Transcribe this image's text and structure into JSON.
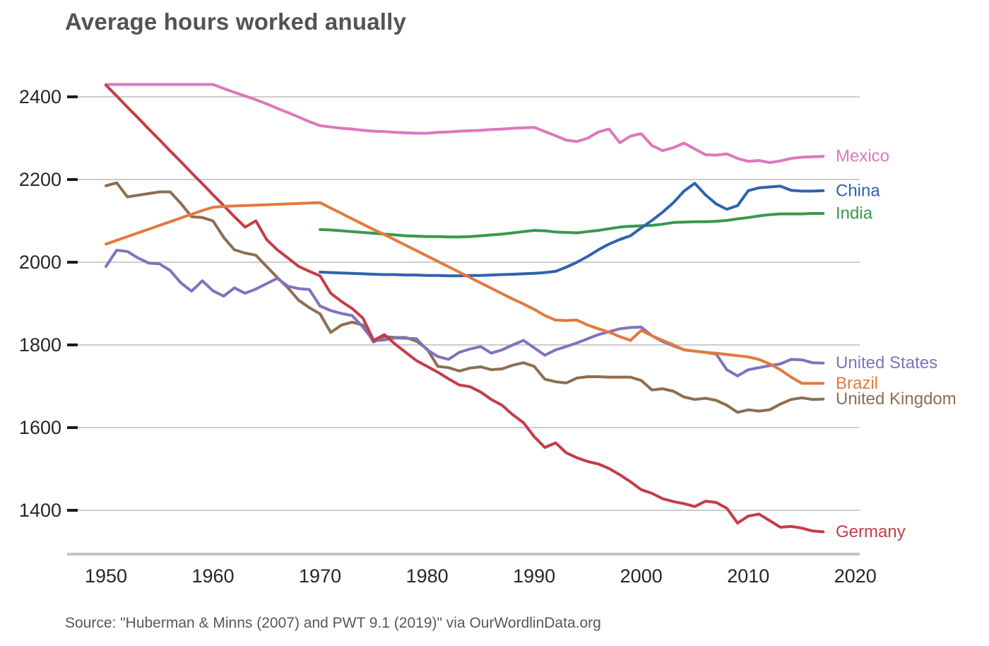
{
  "header": {
    "title": "Average hours worked anually"
  },
  "footer": {
    "source": "Source: \"Huberman & Minns (2007) and PWT 9.1 (2019)\" via OurWordlinData.org"
  },
  "colors": {
    "background": "#ffffff",
    "gridline": "#cdcdcd",
    "axis_line": "#c4c4c4",
    "tick_label": "#262626",
    "title_text": "#535353",
    "source_text": "#575757"
  },
  "chart_data": {
    "type": "line",
    "title": "Average hours worked anually",
    "xlabel": "",
    "ylabel": "",
    "grid": true,
    "legend_position": "right-of-line-ends",
    "x_ticks": [
      1950,
      1960,
      1970,
      1980,
      1990,
      2000,
      2010,
      2020
    ],
    "y_ticks": [
      1400,
      1600,
      1800,
      2000,
      2200,
      2400
    ],
    "xlim": [
      1946,
      2020
    ],
    "ylim": [
      1330,
      2470
    ],
    "series": [
      {
        "name": "Mexico",
        "color": "#de77bc",
        "start_year": 1950,
        "values": [
          2430,
          2430,
          2430,
          2430,
          2430,
          2430,
          2430,
          2430,
          2430,
          2430,
          2430,
          2420,
          2411,
          2402,
          2393,
          2383,
          2372,
          2362,
          2351,
          2340,
          2330,
          2327,
          2324,
          2322,
          2319,
          2317,
          2316,
          2314,
          2313,
          2312,
          2312,
          2314,
          2315,
          2317,
          2318,
          2319,
          2321,
          2322,
          2324,
          2325,
          2326,
          2316,
          2306,
          2295,
          2292,
          2300,
          2315,
          2322,
          2289,
          2305,
          2311,
          2282,
          2270,
          2277,
          2288,
          2274,
          2260,
          2259,
          2262,
          2251,
          2244,
          2246,
          2241,
          2245,
          2251,
          2254,
          2255,
          2256
        ]
      },
      {
        "name": "United Kingdom",
        "color": "#8d6e52",
        "start_year": 1950,
        "values": [
          2185,
          2192,
          2158,
          2162,
          2166,
          2170,
          2170,
          2142,
          2110,
          2108,
          2100,
          2060,
          2030,
          2022,
          2017,
          1990,
          1963,
          1938,
          1908,
          1890,
          1875,
          1830,
          1848,
          1855,
          1848,
          1807,
          1820,
          1818,
          1818,
          1809,
          1790,
          1748,
          1745,
          1737,
          1744,
          1747,
          1740,
          1742,
          1751,
          1757,
          1748,
          1717,
          1711,
          1708,
          1720,
          1723,
          1723,
          1722,
          1722,
          1722,
          1714,
          1691,
          1694,
          1688,
          1674,
          1668,
          1671,
          1666,
          1654,
          1637,
          1643,
          1640,
          1643,
          1657,
          1668,
          1672,
          1668,
          1669
        ]
      },
      {
        "name": "United States",
        "color": "#8172be",
        "start_year": 1950,
        "values": [
          1990,
          2029,
          2026,
          2010,
          1998,
          1996,
          1980,
          1950,
          1930,
          1955,
          1931,
          1918,
          1938,
          1925,
          1935,
          1948,
          1961,
          1942,
          1936,
          1934,
          1894,
          1883,
          1876,
          1871,
          1843,
          1810,
          1812,
          1817,
          1816,
          1815,
          1788,
          1772,
          1765,
          1782,
          1790,
          1796,
          1780,
          1788,
          1800,
          1811,
          1793,
          1775,
          1788,
          1796,
          1805,
          1815,
          1825,
          1832,
          1839,
          1842,
          1843,
          1822,
          1808,
          1798,
          1788,
          1785,
          1782,
          1778,
          1740,
          1725,
          1740,
          1745,
          1750,
          1754,
          1765,
          1764,
          1757,
          1756
        ]
      },
      {
        "name": "India",
        "color": "#39984d",
        "start_year": 1970,
        "values": [
          2079,
          2078,
          2076,
          2074,
          2072,
          2070,
          2068,
          2066,
          2064,
          2063,
          2062,
          2062,
          2061,
          2061,
          2062,
          2064,
          2066,
          2068,
          2071,
          2074,
          2077,
          2076,
          2073,
          2072,
          2071,
          2074,
          2077,
          2081,
          2085,
          2087,
          2088,
          2089,
          2092,
          2096,
          2097,
          2098,
          2098,
          2099,
          2101,
          2105,
          2108,
          2112,
          2115,
          2117,
          2117,
          2117,
          2118,
          2118
        ]
      },
      {
        "name": "China",
        "color": "#2f63ac",
        "start_year": 1970,
        "values": [
          1976,
          1975,
          1974,
          1973,
          1972,
          1971,
          1970,
          1970,
          1969,
          1969,
          1968,
          1968,
          1967,
          1967,
          1968,
          1968,
          1969,
          1970,
          1971,
          1972,
          1973,
          1975,
          1978,
          1988,
          2000,
          2014,
          2030,
          2044,
          2055,
          2064,
          2083,
          2101,
          2121,
          2144,
          2172,
          2191,
          2163,
          2141,
          2128,
          2137,
          2173,
          2180,
          2182,
          2184,
          2174,
          2172,
          2172,
          2173
        ]
      },
      {
        "name": "Germany",
        "color": "#c43d46",
        "start_year": 1950,
        "values": [
          2428,
          2402,
          2375,
          2349,
          2322,
          2296,
          2269,
          2243,
          2216,
          2190,
          2163,
          2137,
          2110,
          2085,
          2100,
          2055,
          2030,
          2010,
          1990,
          1978,
          1967,
          1925,
          1905,
          1888,
          1865,
          1811,
          1825,
          1802,
          1782,
          1762,
          1748,
          1734,
          1718,
          1703,
          1699,
          1686,
          1668,
          1654,
          1631,
          1612,
          1578,
          1552,
          1563,
          1539,
          1527,
          1518,
          1512,
          1501,
          1486,
          1469,
          1450,
          1441,
          1428,
          1421,
          1416,
          1409,
          1422,
          1419,
          1405,
          1369,
          1386,
          1391,
          1375,
          1359,
          1361,
          1357,
          1350,
          1348
        ]
      },
      {
        "name": "Brazil",
        "color": "#e3793d",
        "start_year": 1950,
        "values": [
          2044,
          2053,
          2062,
          2071,
          2080,
          2089,
          2098,
          2107,
          2116,
          2125,
          2133,
          2135,
          2136,
          2137,
          2138,
          2139,
          2140,
          2141,
          2142,
          2143,
          2144,
          2131,
          2118,
          2105,
          2092,
          2079,
          2067,
          2054,
          2041,
          2028,
          2015,
          2002,
          1989,
          1976,
          1963,
          1950,
          1937,
          1924,
          1911,
          1899,
          1886,
          1871,
          1860,
          1859,
          1860,
          1848,
          1839,
          1831,
          1820,
          1811,
          1835,
          1822,
          1811,
          1800,
          1788,
          1785,
          1782,
          1780,
          1777,
          1774,
          1771,
          1765,
          1754,
          1740,
          1722,
          1707,
          1707,
          1707
        ]
      }
    ]
  }
}
